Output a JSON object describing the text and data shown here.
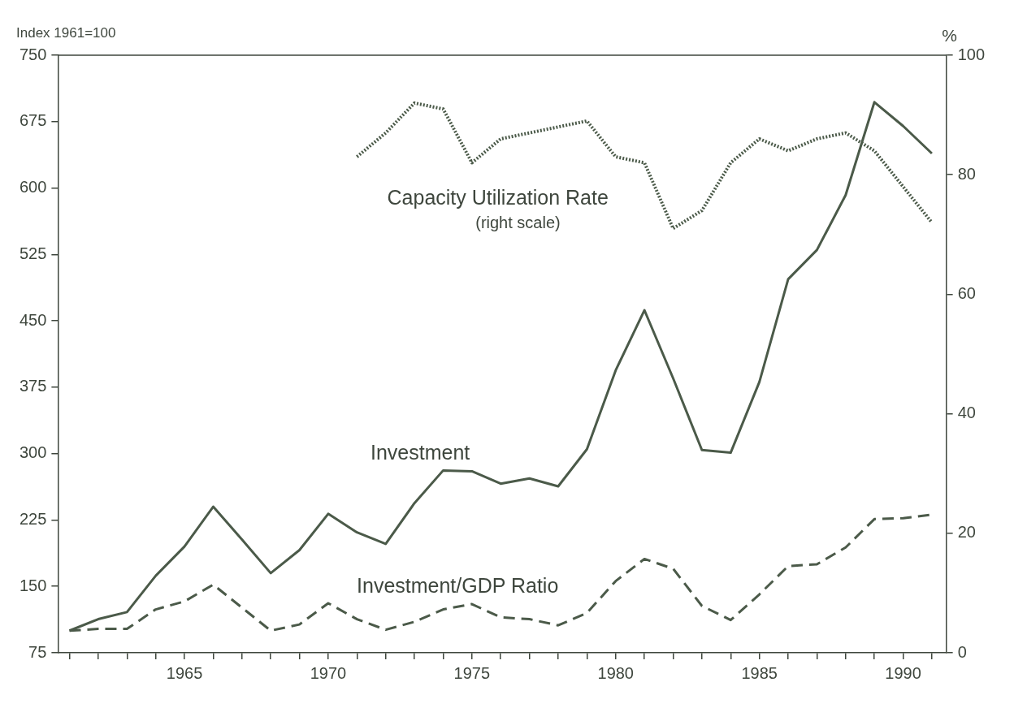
{
  "chart_data": {
    "type": "line",
    "ylabel": "Index 1961=100",
    "y2label": "%",
    "x": [
      1961,
      1962,
      1963,
      1964,
      1965,
      1966,
      1967,
      1968,
      1969,
      1970,
      1971,
      1972,
      1973,
      1974,
      1975,
      1976,
      1977,
      1978,
      1979,
      1980,
      1981,
      1982,
      1983,
      1984,
      1985,
      1986,
      1987,
      1988,
      1989,
      1990,
      1991
    ],
    "xlim": [
      1960.6,
      1991.5
    ],
    "xticks": [
      {
        "value": 1961,
        "label": null
      },
      {
        "value": 1962,
        "label": null
      },
      {
        "value": 1963,
        "label": null
      },
      {
        "value": 1964,
        "label": null
      },
      1965,
      {
        "value": 1966,
        "label": null
      },
      {
        "value": 1967,
        "label": null
      },
      {
        "value": 1968,
        "label": null
      },
      {
        "value": 1969,
        "label": null
      },
      1970,
      {
        "value": 1971,
        "label": null
      },
      {
        "value": 1972,
        "label": null
      },
      {
        "value": 1973,
        "label": null
      },
      {
        "value": 1974,
        "label": null
      },
      1975,
      {
        "value": 1976,
        "label": null
      },
      {
        "value": 1977,
        "label": null
      },
      {
        "value": 1978,
        "label": null
      },
      {
        "value": 1979,
        "label": null
      },
      1980,
      {
        "value": 1981,
        "label": null
      },
      {
        "value": 1982,
        "label": null
      },
      {
        "value": 1983,
        "label": null
      },
      {
        "value": 1984,
        "label": null
      },
      1985,
      {
        "value": 1986,
        "label": null
      },
      {
        "value": 1987,
        "label": null
      },
      {
        "value": 1988,
        "label": null
      },
      {
        "value": 1989,
        "label": null
      },
      1990,
      {
        "value": 1991,
        "label": null
      }
    ],
    "ylim": [
      75,
      750
    ],
    "yticks": [
      75,
      150,
      225,
      300,
      375,
      450,
      525,
      600,
      675,
      750
    ],
    "y2lim": [
      0,
      100
    ],
    "y2ticks": [
      0,
      20,
      40,
      60,
      80,
      100
    ],
    "series": [
      {
        "name": "Investment",
        "color": "#4b5a49",
        "line_style": "solid",
        "values": [
          100,
          113,
          121,
          162,
          195,
          240,
          203,
          165,
          191,
          232,
          211,
          198,
          244,
          281,
          280,
          266,
          272,
          263,
          305,
          394,
          462,
          385,
          304,
          301,
          381,
          497,
          530,
          592,
          697,
          670,
          639
        ]
      },
      {
        "name": "Investment/GDP Ratio",
        "color": "#4b5a49",
        "line_style": "dashed",
        "values": [
          100,
          102,
          102,
          124,
          133,
          152,
          126,
          100,
          107,
          131,
          113,
          101,
          110,
          124,
          130,
          115,
          113,
          106,
          120,
          156,
          181,
          170,
          128,
          112,
          141,
          173,
          175,
          194,
          226,
          227,
          231
        ]
      },
      {
        "name": "Capacity Utilization Rate",
        "color": "#4b5a49",
        "line_style": "dotted",
        "axis": "y2",
        "values": [
          null,
          null,
          null,
          null,
          null,
          null,
          null,
          null,
          null,
          null,
          83,
          87,
          92,
          91,
          82,
          86,
          87,
          88,
          89,
          83,
          82,
          71,
          74,
          82,
          86,
          84,
          86,
          87,
          84,
          78,
          72
        ]
      }
    ],
    "annotations": [
      "(right scale)"
    ],
    "grid": false,
    "legend": false,
    "marker": "none"
  }
}
